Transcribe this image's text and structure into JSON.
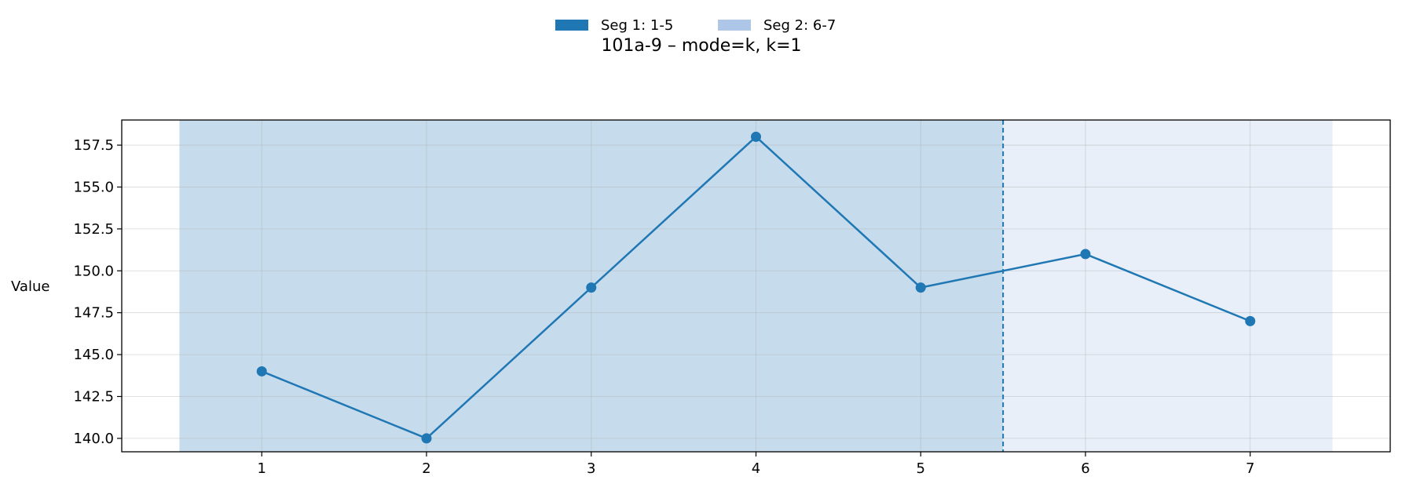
{
  "chart_data": {
    "type": "line",
    "title": "101a-9 – mode=k, k=1",
    "xlabel": "",
    "ylabel": "Value",
    "x": [
      1,
      2,
      3,
      4,
      5,
      6,
      7
    ],
    "series": [
      {
        "values": [
          144,
          140,
          149,
          158,
          149,
          151,
          147
        ],
        "color": "#1f77b4"
      }
    ],
    "xlim": [
      0.15,
      7.85
    ],
    "ylim": [
      139.2,
      159.0
    ],
    "xticks": [
      "1",
      "2",
      "3",
      "4",
      "5",
      "6",
      "7"
    ],
    "yticks": [
      "140.0",
      "142.5",
      "145.0",
      "147.5",
      "150.0",
      "152.5",
      "155.0",
      "157.5"
    ],
    "ytick_values": [
      140.0,
      142.5,
      145.0,
      147.5,
      150.0,
      152.5,
      155.0,
      157.5
    ],
    "segments": [
      {
        "label": "Seg 1: 1-5",
        "x_start": 0.5,
        "x_end": 5.5,
        "color": "#1f77b4",
        "fill": "#c6dbec",
        "legend_color": "#1f77b4"
      },
      {
        "label": "Seg 2: 6-7",
        "x_start": 5.5,
        "x_end": 7.5,
        "color": "#aec7e8",
        "fill": "#e8eff9",
        "legend_color": "#aec7e8"
      }
    ],
    "boundary_x": 5.5,
    "grid": true,
    "legend_position": "top-center"
  }
}
